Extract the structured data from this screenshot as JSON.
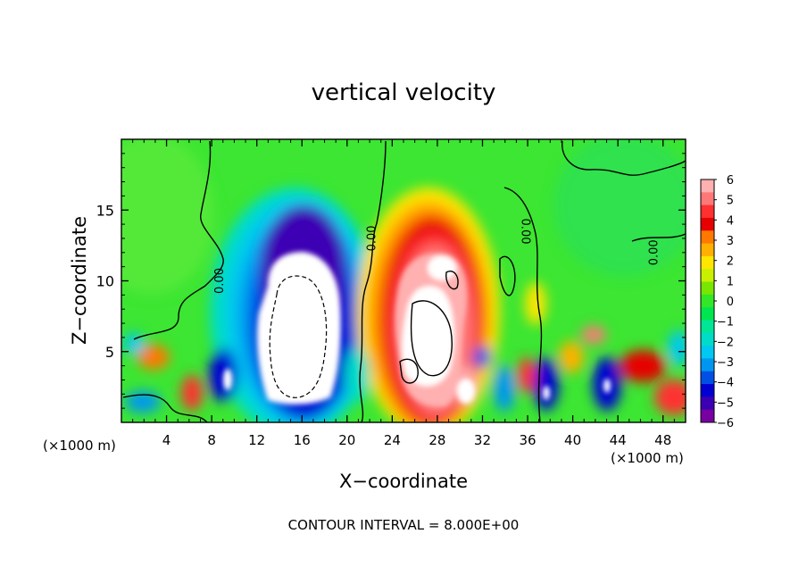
{
  "chart_data": {
    "type": "heatmap",
    "title": "vertical velocity",
    "xlabel": "X−coordinate",
    "ylabel": "Z−coordinate",
    "x_unit_left": "(×1000 m)",
    "x_unit_right": "(×1000 m)",
    "footer": "CONTOUR INTERVAL = 8.000E+00",
    "xlim": [
      0,
      50
    ],
    "ylim": [
      0,
      20
    ],
    "x_ticks": [
      "4",
      "8",
      "12",
      "16",
      "20",
      "24",
      "28",
      "32",
      "36",
      "40",
      "44",
      "48"
    ],
    "y_ticks": [
      "5",
      "10",
      "15"
    ],
    "colorbar": {
      "range": [
        -6,
        6
      ],
      "labels": [
        "6",
        "5",
        "4",
        "3",
        "2",
        "1",
        "0",
        "−1",
        "−2",
        "−3",
        "−4",
        "−5",
        "−6"
      ],
      "colors": [
        "#ffb0b0",
        "#ff7878",
        "#ff3030",
        "#e60000",
        "#ff7800",
        "#ffb000",
        "#ffe600",
        "#c8f000",
        "#78e600",
        "#32e628",
        "#00e650",
        "#00e696",
        "#00dcc8",
        "#00c8f0",
        "#0096f0",
        "#0050e6",
        "#0000d2",
        "#3c00b4",
        "#7800a0"
      ]
    },
    "contour_labels": [
      "0.00",
      "0.00",
      "0.00",
      "0.00"
    ],
    "features": [
      {
        "kind": "downdraft",
        "x": 15.5,
        "z": 7,
        "value": "< -6"
      },
      {
        "kind": "updraft",
        "x": 27.5,
        "z": 7.5,
        "value": "> 6"
      }
    ]
  }
}
